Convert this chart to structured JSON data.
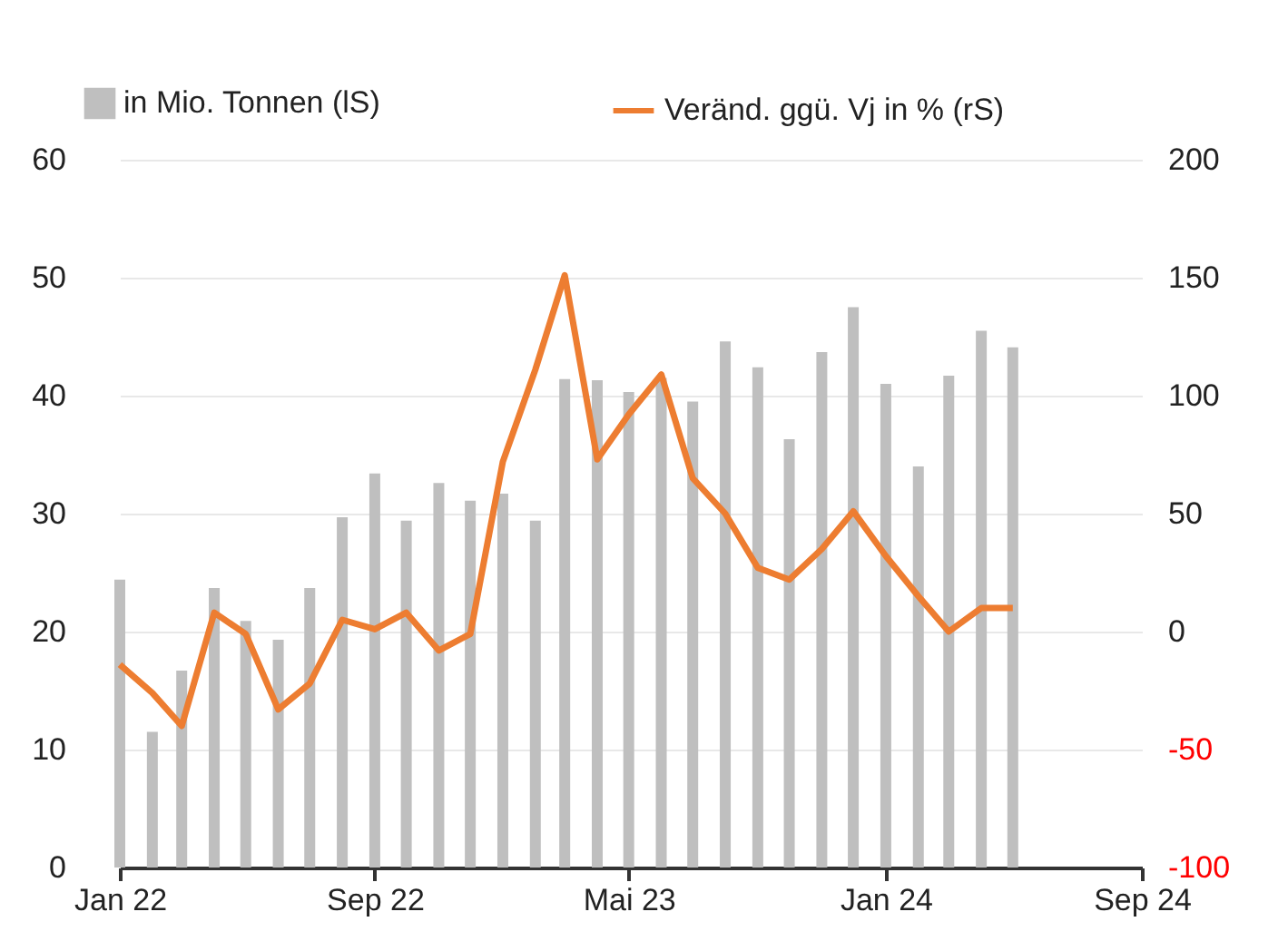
{
  "chart_data": {
    "type": "bar",
    "x": [
      "2022-01",
      "2022-02",
      "2022-03",
      "2022-04",
      "2022-05",
      "2022-06",
      "2022-07",
      "2022-08",
      "2022-09",
      "2022-10",
      "2022-11",
      "2022-12",
      "2023-01",
      "2023-02",
      "2023-03",
      "2023-04",
      "2023-05",
      "2023-06",
      "2023-07",
      "2023-08",
      "2023-09",
      "2023-10",
      "2023-11",
      "2023-12",
      "2024-01",
      "2024-02",
      "2024-03",
      "2024-04",
      "2024-05"
    ],
    "series": [
      {
        "name": "in Mio. Tonnen (lS)",
        "color": "#bfbfbf",
        "values": [
          24.4,
          11.5,
          16.7,
          23.7,
          20.9,
          19.3,
          23.7,
          29.7,
          33.4,
          29.4,
          32.6,
          31.1,
          31.7,
          29.4,
          41.4,
          41.3,
          40.3,
          41.5,
          39.5,
          44.6,
          42.4,
          36.3,
          43.7,
          47.5,
          41.0,
          34.0,
          41.7,
          45.5,
          44.1
        ]
      },
      {
        "name": "Veränd. ggü. Vj in % (rS)",
        "type": "line",
        "axis": "y2",
        "color": "#ed7d31",
        "values": [
          -14,
          -26,
          -40,
          8,
          -1,
          -33,
          -22,
          5,
          1,
          8,
          -8,
          -1,
          72,
          111,
          151,
          73,
          92,
          109,
          65,
          50,
          27,
          22,
          35,
          51,
          32,
          15,
          0,
          10,
          10
        ]
      }
    ],
    "xlim": [
      "2022-01",
      "2024-09"
    ],
    "xticks": [
      {
        "value": "2022-01",
        "label": "Jan 22"
      },
      {
        "value": "2022-09",
        "label": "Sep 22"
      },
      {
        "value": "2023-05",
        "label": "Mai 23"
      },
      {
        "value": "2024-01",
        "label": "Jan 24"
      },
      {
        "value": "2024-09",
        "label": "Sep 24"
      }
    ],
    "ylim": [
      0,
      60
    ],
    "yticks": [
      0,
      10,
      20,
      30,
      40,
      50,
      60
    ],
    "y2lim": [
      -100,
      200
    ],
    "y2ticks": [
      -100,
      -50,
      0,
      50,
      100,
      150,
      200
    ],
    "grid": "y",
    "legend": "top"
  }
}
